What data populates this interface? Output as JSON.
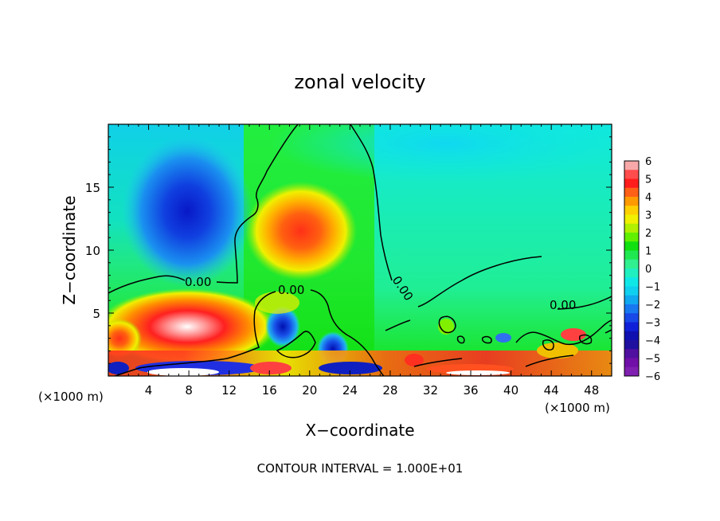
{
  "chart_data": {
    "type": "heatmap",
    "title": "zonal velocity",
    "xlabel": "X−coordinate",
    "ylabel": "Z−coordinate",
    "x_unit_left": "(×1000 m)",
    "x_unit_right": "(×1000 m)",
    "xlim": [
      0,
      50
    ],
    "ylim": [
      0,
      20
    ],
    "x_ticks": [
      "4",
      "8",
      "12",
      "16",
      "20",
      "24",
      "28",
      "32",
      "36",
      "40",
      "44",
      "48"
    ],
    "x_tick_values": [
      4,
      8,
      12,
      16,
      20,
      24,
      28,
      32,
      36,
      40,
      44,
      48
    ],
    "y_ticks": [
      "5",
      "10",
      "15"
    ],
    "y_tick_values": [
      5,
      10,
      15
    ],
    "colorbar": {
      "range": [
        -6,
        6
      ],
      "ticks": [
        "6",
        "5",
        "4",
        "3",
        "2",
        "1",
        "0",
        "−1",
        "−2",
        "−3",
        "−4",
        "−5",
        "−6"
      ],
      "tick_values": [
        6,
        5,
        4,
        3,
        2,
        1,
        0,
        -1,
        -2,
        -3,
        -4,
        -5,
        -6
      ]
    },
    "contour_label": "0.00",
    "footnote": "CONTOUR INTERVAL = 1.000E+01",
    "features": [
      {
        "x": 8.0,
        "z": 13.5,
        "value": -4.5
      },
      {
        "x": 20.0,
        "z": 11.5,
        "value": 3.6
      },
      {
        "x": 8.5,
        "z": 3.0,
        "value": 6.0
      },
      {
        "x": 17.5,
        "z": 4.0,
        "value": -4.0
      },
      {
        "x": 22.0,
        "z": 2.0,
        "value": -3.0
      },
      {
        "x": 44.0,
        "z": 18.0,
        "value": -1.8
      }
    ]
  }
}
